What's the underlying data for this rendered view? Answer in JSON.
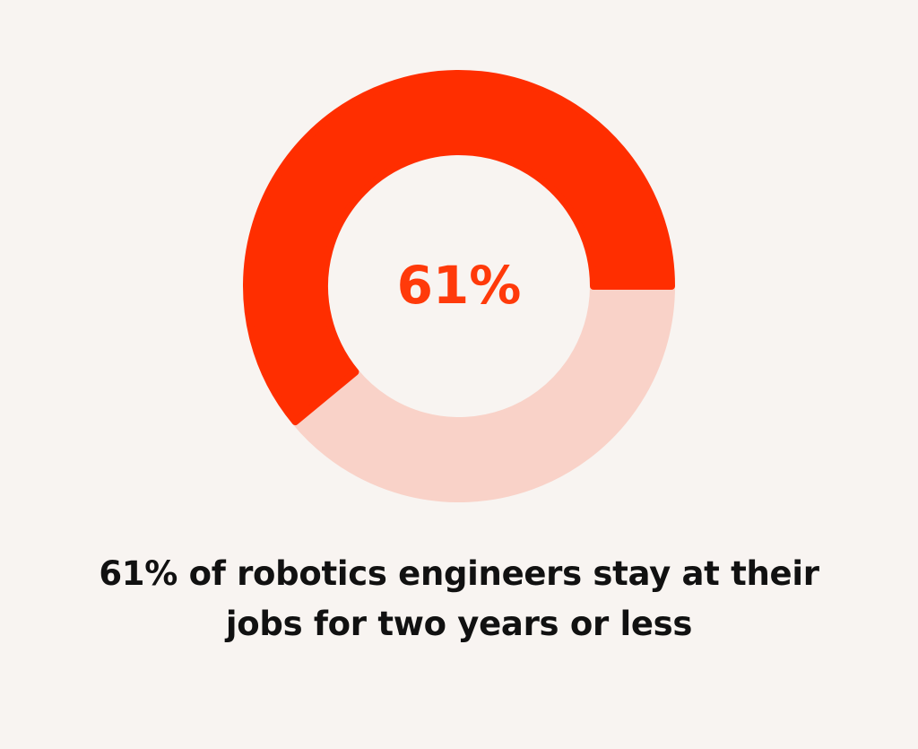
{
  "chart_data": {
    "type": "donut",
    "title": "61% of robotics engineers stay at their jobs for two years or less",
    "categories": [
      null,
      null
    ],
    "values": [
      61,
      39
    ],
    "value_labels": [
      "61%",
      null
    ],
    "colors": [
      "#ff2e00",
      "#f9d2c8"
    ],
    "label_color": "#ff3a0a"
  }
}
